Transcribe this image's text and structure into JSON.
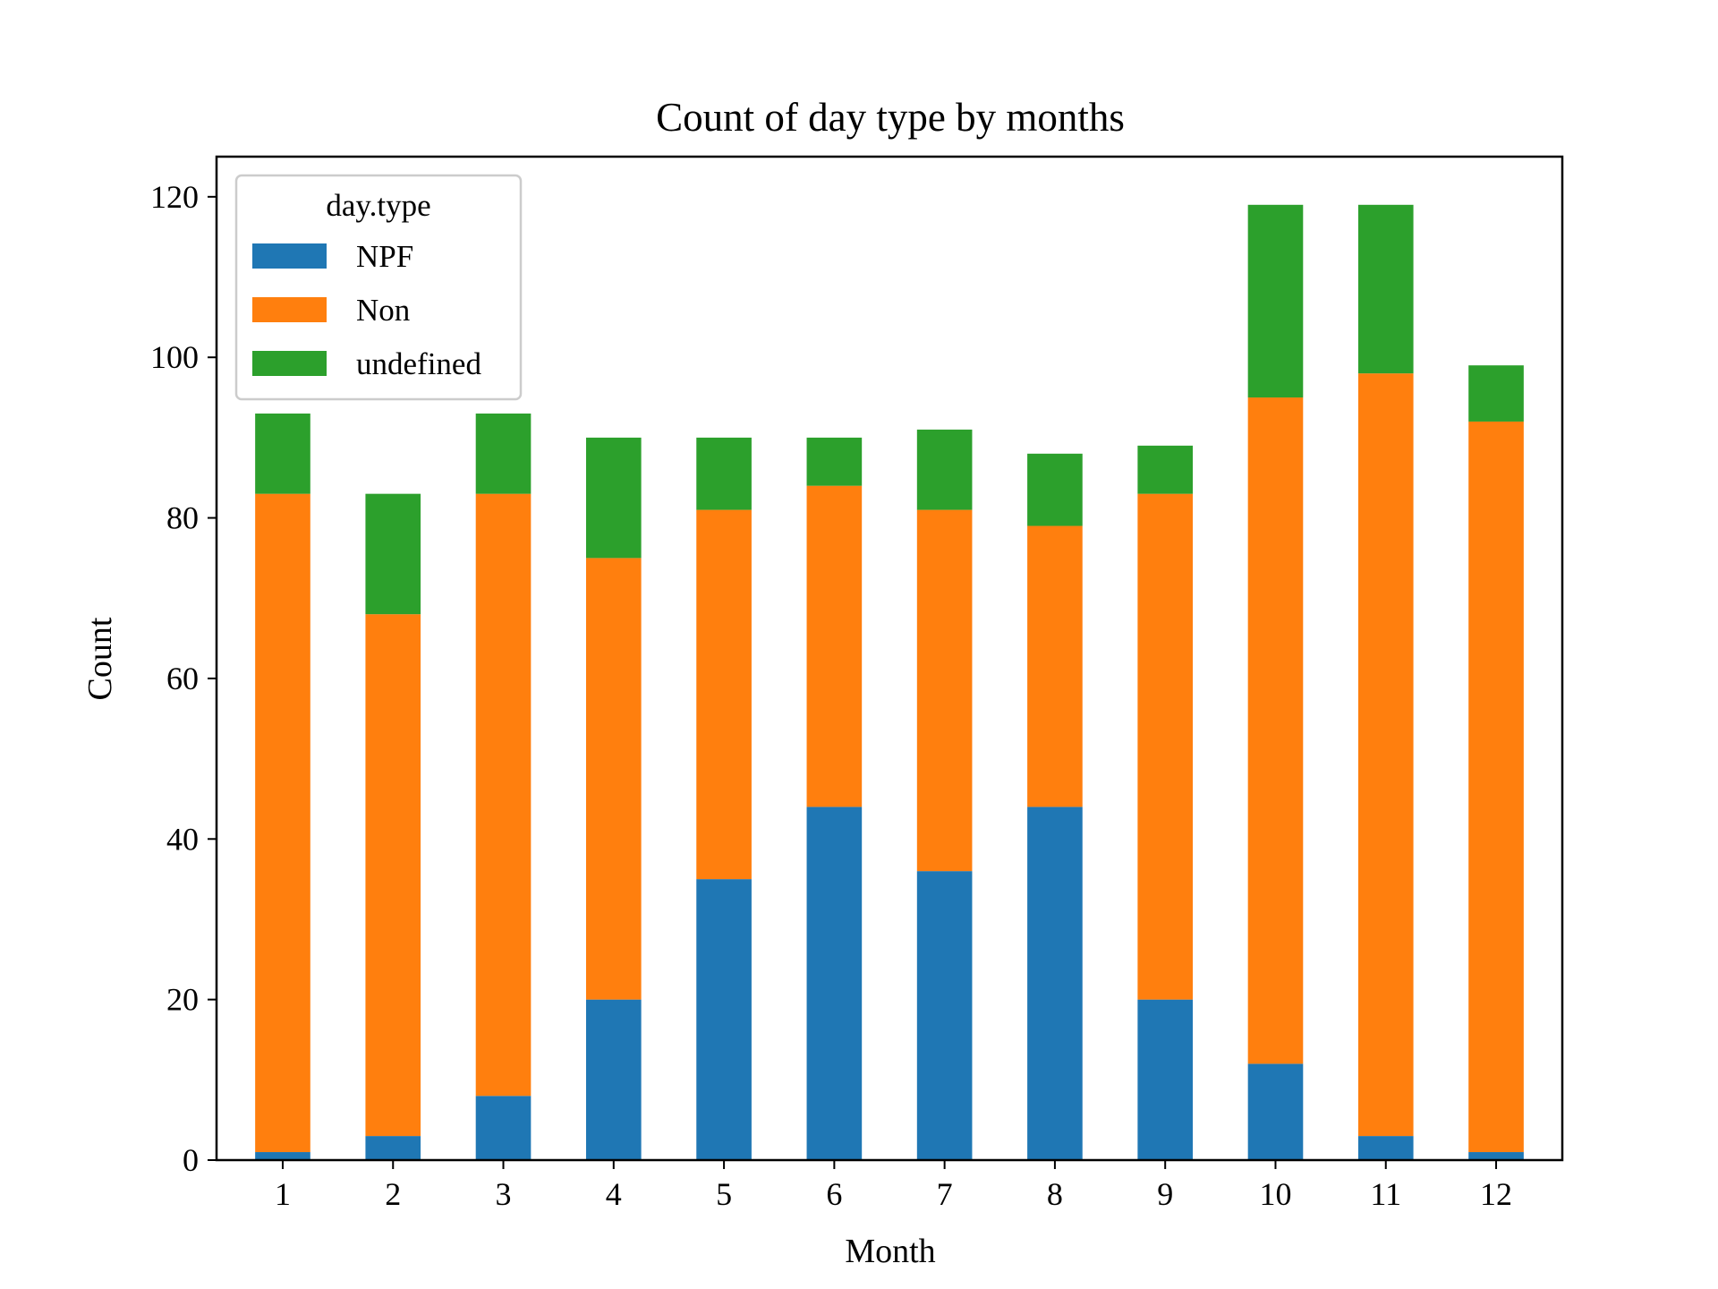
{
  "chart_data": {
    "type": "bar",
    "stacked": true,
    "title": "Count of day type by months",
    "xlabel": "Month",
    "ylabel": "Count",
    "categories": [
      "1",
      "2",
      "3",
      "4",
      "5",
      "6",
      "7",
      "8",
      "9",
      "10",
      "11",
      "12"
    ],
    "series": [
      {
        "name": "NPF",
        "color": "#1f77b4",
        "values": [
          1,
          3,
          8,
          20,
          35,
          44,
          36,
          44,
          20,
          12,
          3,
          1
        ]
      },
      {
        "name": "Non",
        "color": "#ff7f0e",
        "values": [
          82,
          65,
          75,
          55,
          46,
          40,
          45,
          35,
          63,
          83,
          95,
          91
        ]
      },
      {
        "name": "undefined",
        "color": "#2ca02c",
        "values": [
          10,
          15,
          10,
          15,
          9,
          6,
          10,
          9,
          6,
          24,
          21,
          7
        ]
      }
    ],
    "ylim": [
      0,
      125
    ],
    "yticks": [
      0,
      20,
      40,
      60,
      80,
      100,
      120
    ],
    "grid": false,
    "legend": {
      "title": "day.type",
      "position": "top-left"
    }
  }
}
